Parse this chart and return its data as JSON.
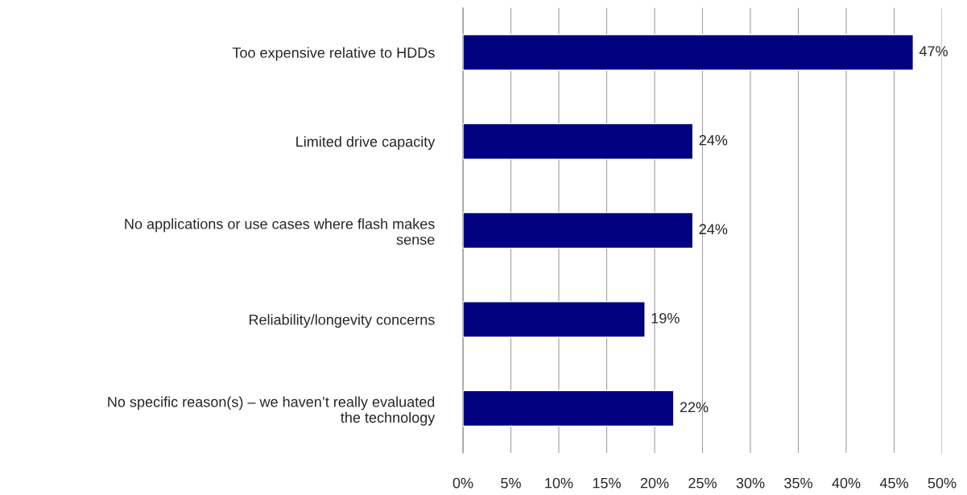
{
  "chart_data": {
    "type": "bar",
    "orientation": "horizontal",
    "categories": [
      "Too expensive relative to HDDs",
      "Limited drive capacity",
      "No applications or use cases where flash makes\nsense",
      "Reliability/longevity concerns",
      "No specific reason(s) – we haven’t really evaluated\nthe technology"
    ],
    "values": [
      47,
      24,
      24,
      19,
      22
    ],
    "value_labels": [
      "47%",
      "24%",
      "24%",
      "19%",
      "22%"
    ],
    "color": "#000080",
    "xlim": [
      0,
      50
    ],
    "xticks": [
      {
        "value": 0,
        "label": "0%"
      },
      {
        "value": 5,
        "label": "5%"
      },
      {
        "value": 10,
        "label": "10%"
      },
      {
        "value": 15,
        "label": "15%"
      },
      {
        "value": 20,
        "label": "20%"
      },
      {
        "value": 25,
        "label": "25%"
      },
      {
        "value": 30,
        "label": "30%"
      },
      {
        "value": 35,
        "label": "35%"
      },
      {
        "value": 40,
        "label": "40%"
      },
      {
        "value": 45,
        "label": "45%"
      },
      {
        "value": 50,
        "label": "50%"
      }
    ],
    "grid": "x"
  }
}
